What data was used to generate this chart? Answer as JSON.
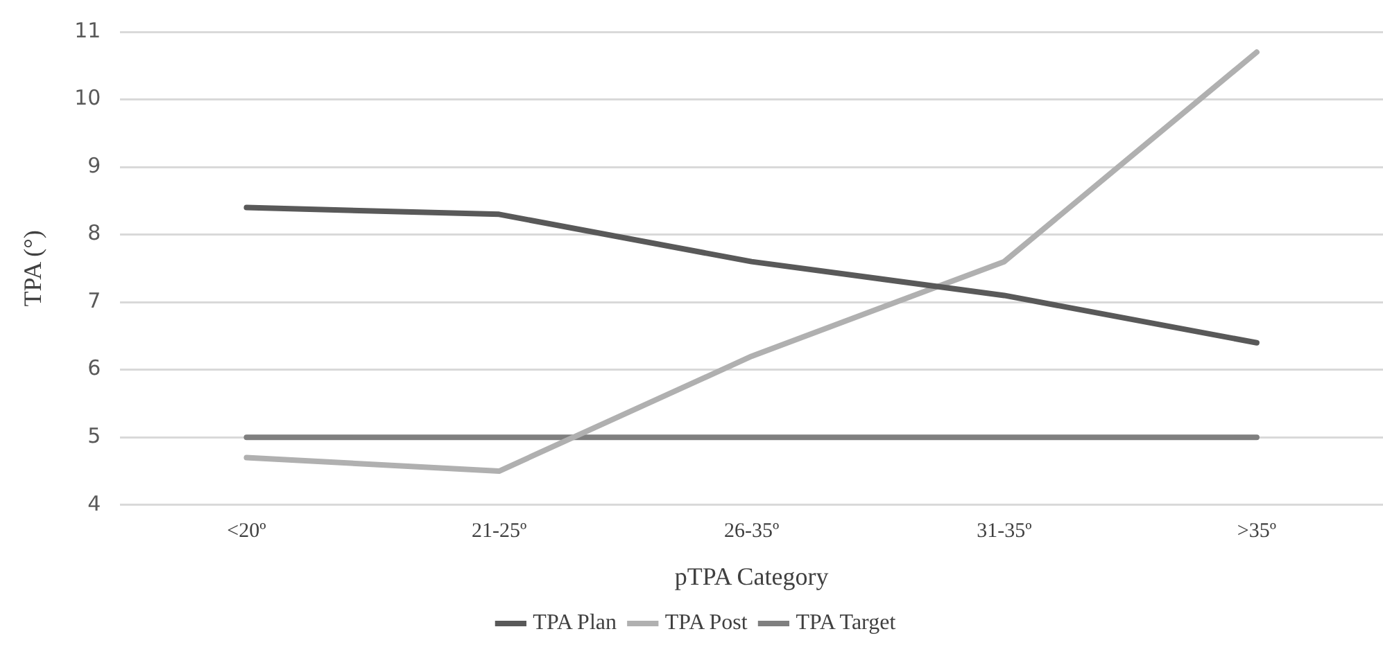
{
  "chart_data": {
    "type": "line",
    "xlabel": "pTPA Category",
    "ylabel": "TPA (°)",
    "categories": [
      "<20º",
      "21-25º",
      "26-35º",
      "31-35º",
      ">35º"
    ],
    "series": [
      {
        "name": "TPA Plan",
        "color": "#595959",
        "values": [
          8.4,
          8.3,
          7.6,
          7.1,
          6.4
        ]
      },
      {
        "name": "TPA Post",
        "color": "#b0b0b0",
        "values": [
          4.7,
          4.5,
          6.2,
          7.6,
          10.7
        ]
      },
      {
        "name": "TPA Target",
        "color": "#7f7f7f",
        "values": [
          5,
          5,
          5,
          5,
          5
        ]
      }
    ],
    "ylim": [
      4,
      11
    ],
    "yticks": [
      4,
      5,
      6,
      7,
      8,
      9,
      10,
      11
    ],
    "grid": "y",
    "legend": "bottom",
    "marker": "none",
    "line_style": "solid"
  }
}
